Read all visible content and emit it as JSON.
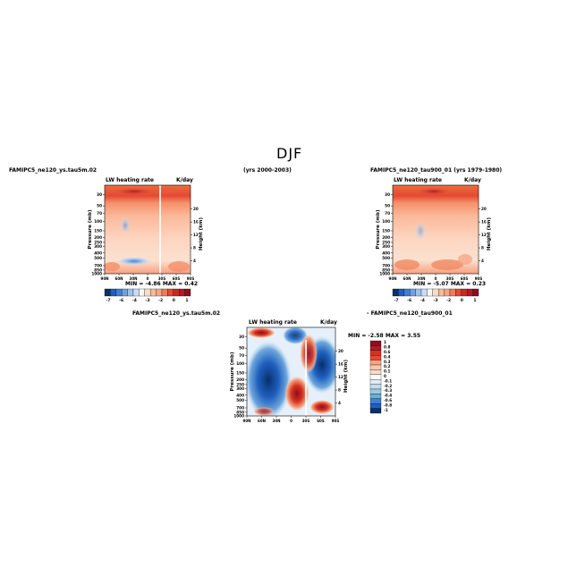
{
  "page": {
    "title": "DJF"
  },
  "panels": [
    {
      "case_label": "FAMIPC5_ne120_ys.tau5m.02",
      "years": "(yrs 2000-2003)",
      "variable": "LW heating rate",
      "units": "K/day",
      "minmax": "MIN = -4.86   MAX = 0.42"
    },
    {
      "case_label": "FAMIPC5_ne120_tau900_01 (yrs 1979-1980)",
      "variable": "LW heating rate",
      "units": "K/day",
      "minmax": "MIN = -5.07   MAX = 0.23"
    },
    {
      "case_label": "FAMIPC5_ne120_ys.tau5m.02",
      "diff_label": "- FAMIPC5_ne120_tau900_01",
      "variable": "LW heating rate",
      "units": "K/day",
      "minmax": "MIN = -2.58   MAX = 3.55"
    }
  ],
  "chart_data": [
    {
      "type": "heatmap",
      "name": "top-left",
      "ylabel": "Pressure (mb)",
      "y2label": "Height (km)",
      "xticks": [
        "90N",
        "60N",
        "30N",
        "0",
        "30S",
        "60S",
        "90S"
      ],
      "yticks": [
        1000,
        850,
        700,
        500,
        400,
        300,
        250,
        200,
        150,
        100,
        70,
        50,
        30
      ],
      "y2ticks": [
        4,
        8,
        12,
        16,
        20
      ],
      "colorbar": {
        "levels": [
          -7,
          -6,
          -5,
          -4,
          -3,
          -2,
          -1,
          0,
          1
        ],
        "labels": [
          "-7",
          "-6",
          "-4",
          "-3",
          "-2",
          "0",
          "1"
        ]
      },
      "min": -4.86,
      "max": 0.42
    },
    {
      "type": "heatmap",
      "name": "top-right",
      "ylabel": "Pressure (mb)",
      "y2label": "Height (km)",
      "xticks": [
        "90N",
        "60N",
        "30N",
        "0",
        "30S",
        "60S",
        "90S"
      ],
      "yticks": [
        1000,
        850,
        700,
        500,
        400,
        300,
        250,
        200,
        150,
        100,
        70,
        50,
        30
      ],
      "y2ticks": [
        4,
        8,
        12,
        16,
        20
      ],
      "colorbar": {
        "levels": [
          -7,
          -6,
          -5,
          -4,
          -3,
          -2,
          -1,
          0,
          1
        ],
        "labels": [
          "-7",
          "-6",
          "-4",
          "-3",
          "-2",
          "0",
          "1"
        ]
      },
      "min": -5.07,
      "max": 0.23
    },
    {
      "type": "heatmap",
      "name": "bottom-diff",
      "ylabel": "Pressure (mb)",
      "y2label": "Height (km)",
      "xticks": [
        "90N",
        "60N",
        "30N",
        "0",
        "30S",
        "60S",
        "90S"
      ],
      "yticks": [
        1000,
        850,
        700,
        500,
        400,
        300,
        250,
        200,
        150,
        100,
        70,
        50,
        30
      ],
      "y2ticks": [
        4,
        8,
        12,
        16,
        20
      ],
      "colorbar": {
        "labels": [
          "1",
          "0.8",
          "0.6",
          "0.4",
          "0.3",
          "0.2",
          "0.1",
          "0",
          "-0.1",
          "-0.2",
          "-0.3",
          "-0.4",
          "-0.6",
          "-0.8",
          "-1"
        ]
      },
      "min": -2.58,
      "max": 3.55
    }
  ],
  "colors": {
    "dark_red": "#b2182b",
    "red": "#e34a33",
    "orange": "#f4a582",
    "peach": "#fddbc7",
    "white": "#ffffff",
    "light_blue": "#d1e5f0",
    "blue": "#4393c3",
    "dark_blue": "#08306b"
  }
}
